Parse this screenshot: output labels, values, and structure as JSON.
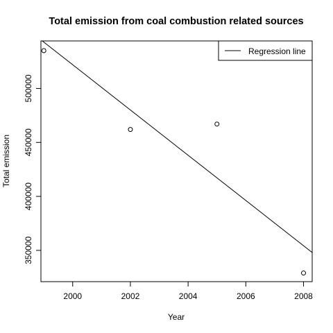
{
  "chart_data": {
    "type": "scatter",
    "title": "Total emission from coal combustion related sources",
    "xlabel": "Year",
    "ylabel": "Total emission",
    "xlim": [
      1998.9,
      2008.3
    ],
    "ylim": [
      321000,
      544000
    ],
    "x_ticks": [
      2000,
      2002,
      2004,
      2006,
      2008
    ],
    "y_ticks": [
      350000,
      400000,
      450000,
      500000
    ],
    "x_tick_labels": [
      "2000",
      "2002",
      "2004",
      "2006",
      "2008"
    ],
    "y_tick_labels": [
      "350000",
      "400000",
      "450000",
      "500000"
    ],
    "points": [
      {
        "x": 1999,
        "y": 535000
      },
      {
        "x": 2002,
        "y": 462000
      },
      {
        "x": 2005,
        "y": 467000
      },
      {
        "x": 2008,
        "y": 329000
      }
    ],
    "regression_line": {
      "x": [
        1998.9,
        2008.3
      ],
      "y": [
        545000,
        348000
      ]
    },
    "legend": {
      "position": "top-right",
      "entries": [
        "Regression line"
      ]
    },
    "grid": false
  }
}
